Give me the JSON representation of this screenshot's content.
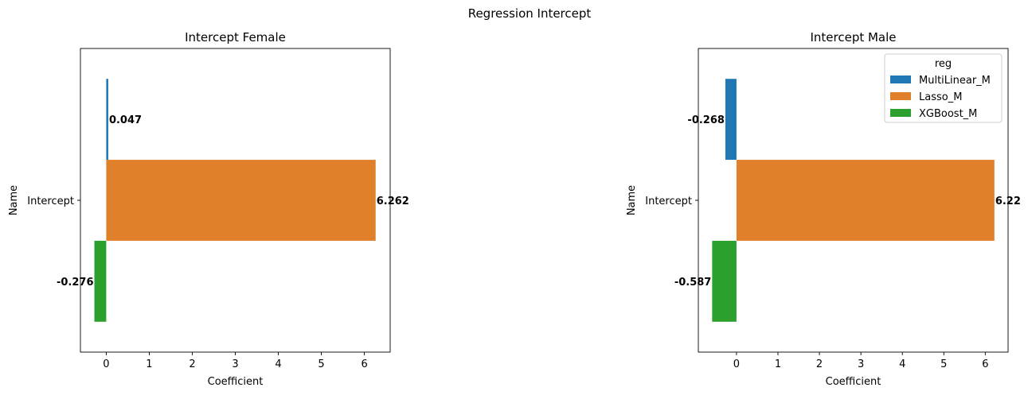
{
  "suptitle": "Regression Intercept",
  "chart_data": [
    {
      "type": "bar",
      "orientation": "horizontal",
      "title": "Intercept Female",
      "xlabel": "Coefficient",
      "ylabel": "Name",
      "categories": [
        "Intercept"
      ],
      "xlim": [
        -0.6,
        6.6
      ],
      "xticks": [
        "0",
        "1",
        "2",
        "3",
        "4",
        "5",
        "6"
      ],
      "series": [
        {
          "name": "MultiLinear_M",
          "color": "#1f77b4",
          "value": 0.047,
          "label": "0.047"
        },
        {
          "name": "Lasso_M",
          "color": "#e0802b",
          "value": 6.262,
          "label": "6.262"
        },
        {
          "name": "XGBoost_M",
          "color": "#2ca02c",
          "value": -0.276,
          "label": "-0.276"
        }
      ],
      "legend": null
    },
    {
      "type": "bar",
      "orientation": "horizontal",
      "title": "Intercept Male",
      "xlabel": "Coefficient",
      "ylabel": "Name",
      "categories": [
        "Intercept"
      ],
      "xlim": [
        -0.92,
        6.55
      ],
      "xticks": [
        "0",
        "1",
        "2",
        "3",
        "4",
        "5",
        "6"
      ],
      "series": [
        {
          "name": "MultiLinear_M",
          "color": "#1f77b4",
          "value": -0.268,
          "label": "-0.268"
        },
        {
          "name": "Lasso_M",
          "color": "#e0802b",
          "value": 6.22,
          "label": "6.22"
        },
        {
          "name": "XGBoost_M",
          "color": "#2ca02c",
          "value": -0.587,
          "label": "-0.587"
        }
      ],
      "legend": {
        "title": "reg",
        "placement": "upper-right",
        "entries": [
          "MultiLinear_M",
          "Lasso_M",
          "XGBoost_M"
        ]
      }
    }
  ]
}
